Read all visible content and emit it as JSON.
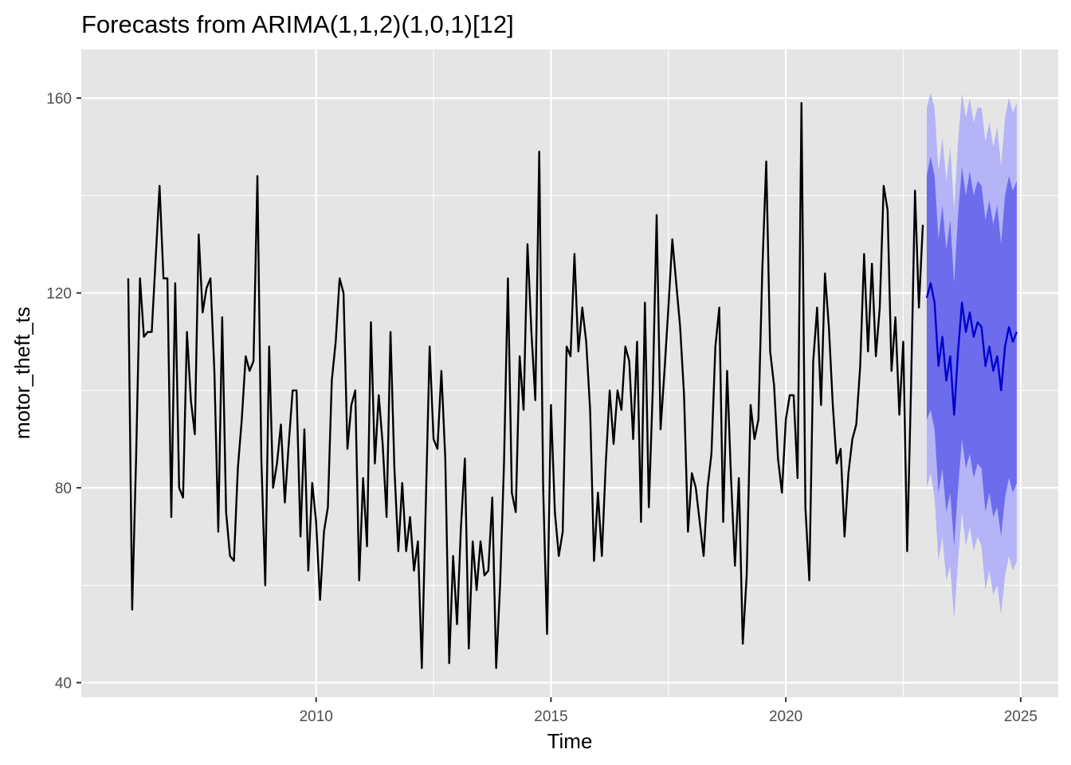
{
  "chart_data": {
    "type": "line",
    "title": "Forecasts from ARIMA(1,1,2)(1,0,1)[12]",
    "xlabel": "Time",
    "ylabel": "motor_theft_ts",
    "xlim": [
      2005.0,
      2025.8
    ],
    "ylim": [
      37,
      170
    ],
    "x_ticks": [
      2010,
      2015,
      2020,
      2025
    ],
    "x_tick_labels": [
      "2010",
      "2015",
      "2020",
      "2025"
    ],
    "y_ticks": [
      40,
      80,
      120,
      160
    ],
    "y_tick_labels": [
      "40",
      "80",
      "120",
      "160"
    ],
    "grid": true,
    "legend": "none",
    "history": {
      "start": 2006.0,
      "frequency": 12,
      "values": [
        123,
        55,
        86,
        123,
        111,
        112,
        112,
        127,
        142,
        123,
        123,
        74,
        122,
        80,
        78,
        112,
        98,
        91,
        132,
        116,
        121,
        123,
        104,
        71,
        115,
        75,
        66,
        65,
        84,
        94,
        107,
        104,
        106,
        144,
        86,
        60,
        109,
        80,
        85,
        93,
        77,
        89,
        100,
        100,
        70,
        92,
        63,
        81,
        73,
        57,
        71,
        76,
        102,
        110,
        123,
        120,
        88,
        97,
        100,
        61,
        82,
        68,
        114,
        85,
        99,
        89,
        74,
        112,
        84,
        67,
        81,
        67,
        74,
        63,
        69,
        43,
        76,
        109,
        90,
        88,
        104,
        86,
        44,
        66,
        52,
        72,
        86,
        47,
        69,
        59,
        69,
        62,
        63,
        78,
        43,
        60,
        85,
        123,
        79,
        75,
        107,
        96,
        130,
        112,
        98,
        149,
        80,
        50,
        97,
        75,
        66,
        71,
        109,
        107,
        128,
        108,
        117,
        110,
        96,
        65,
        79,
        66,
        85,
        100,
        89,
        100,
        96,
        109,
        106,
        90,
        110,
        73,
        118,
        76,
        100,
        136,
        92,
        104,
        117,
        131,
        122,
        113,
        99,
        71,
        83,
        80,
        73,
        66,
        80,
        87,
        109,
        117,
        73,
        104,
        82,
        64,
        82,
        48,
        62,
        97,
        90,
        94,
        125,
        147,
        108,
        101,
        86,
        79,
        94,
        99,
        99,
        82,
        159,
        76,
        61,
        106,
        117,
        97,
        124,
        113,
        97,
        85,
        88,
        70,
        83,
        90,
        93,
        105,
        128,
        108,
        126,
        107,
        117,
        142,
        137,
        104,
        115,
        95,
        110,
        67,
        101,
        141,
        117,
        134
      ]
    },
    "forecast": {
      "start": 2023.0,
      "frequency": 12,
      "mean": [
        119,
        122,
        118,
        105,
        111,
        102,
        107,
        95,
        108,
        118,
        112,
        116,
        111,
        114,
        113,
        105,
        109,
        104,
        107,
        100,
        109,
        113,
        110,
        112
      ],
      "lo80": [
        94,
        96,
        92,
        79,
        84,
        75,
        79,
        68,
        80,
        90,
        84,
        87,
        82,
        85,
        84,
        75,
        79,
        74,
        76,
        70,
        78,
        82,
        79,
        81
      ],
      "hi80": [
        144,
        148,
        144,
        131,
        138,
        129,
        135,
        122,
        136,
        146,
        140,
        145,
        140,
        143,
        142,
        135,
        139,
        134,
        138,
        130,
        140,
        144,
        141,
        143
      ],
      "lo95": [
        80,
        83,
        78,
        65,
        70,
        61,
        64,
        53,
        65,
        75,
        68,
        72,
        67,
        70,
        68,
        59,
        63,
        58,
        60,
        54,
        62,
        66,
        63,
        65
      ],
      "hi95": [
        158,
        161,
        158,
        145,
        152,
        143,
        150,
        137,
        151,
        161,
        156,
        160,
        155,
        158,
        158,
        151,
        155,
        150,
        154,
        146,
        156,
        160,
        157,
        159
      ]
    },
    "colors": {
      "panel": "#e5e5e5",
      "grid": "#ffffff",
      "history_line": "#000000",
      "forecast_line": "#0000cc",
      "band80": "#6c6cec",
      "band95": "#b4b4f6",
      "tick_text": "#4d4d4d",
      "tick_mark": "#333333"
    }
  }
}
